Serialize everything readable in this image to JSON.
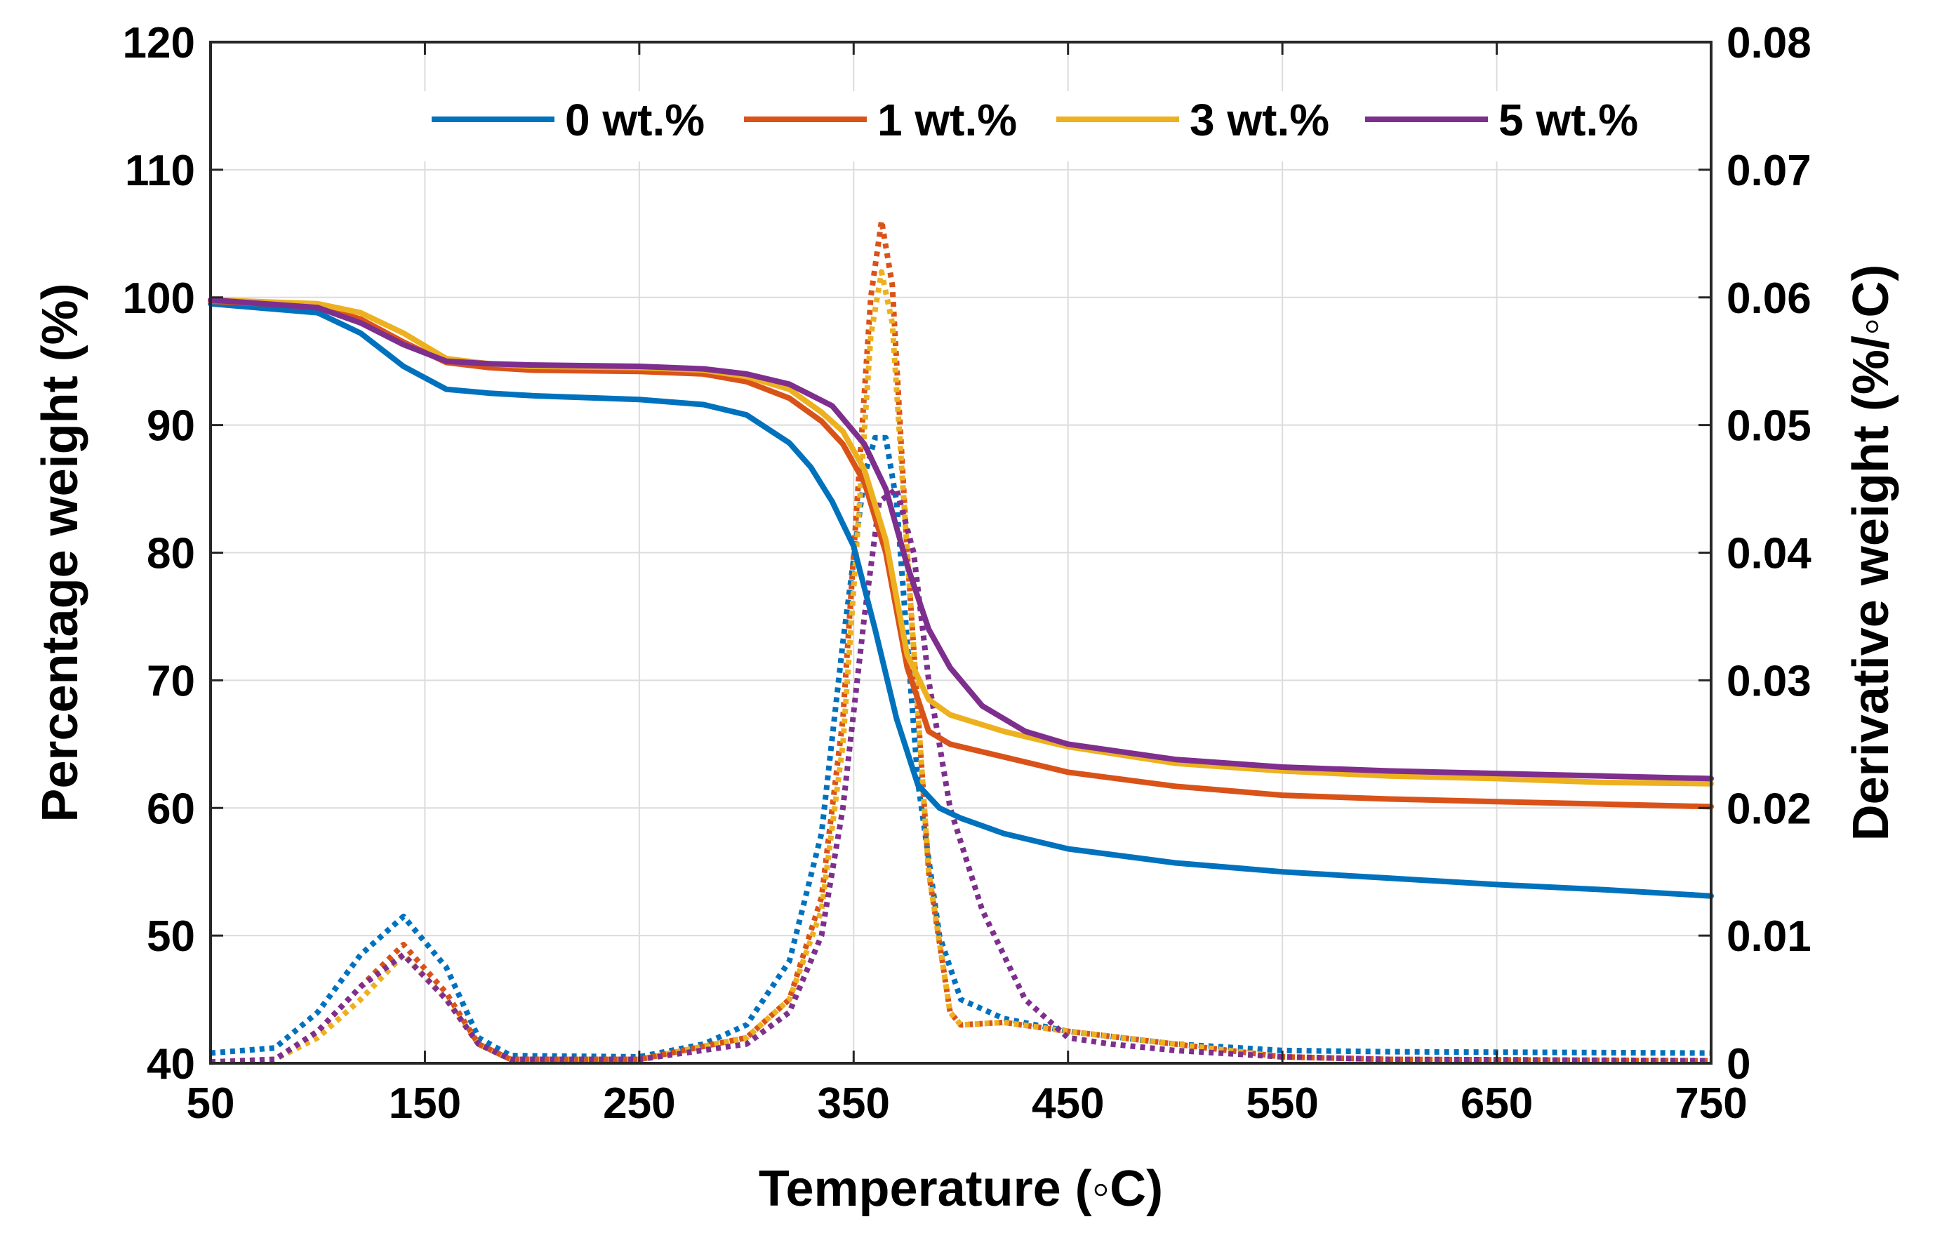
{
  "chart_data": {
    "type": "line",
    "title": "",
    "xlabel": "Temperature (◦C)",
    "ylabel_left": "Percentage weight (%)",
    "ylabel_right": "Derivative weight (%/◦C)",
    "xlim": [
      50,
      750
    ],
    "ylim_left": [
      40,
      120
    ],
    "ylim_right": [
      0,
      0.08
    ],
    "x_ticks": [
      50,
      150,
      250,
      350,
      450,
      550,
      650,
      750
    ],
    "y_ticks_left": [
      40,
      50,
      60,
      70,
      80,
      90,
      100,
      110,
      120
    ],
    "y_ticks_right": [
      "0",
      "0.01",
      "0.02",
      "0.03",
      "0.04",
      "0.05",
      "0.06",
      "0.07",
      "0.08"
    ],
    "grid": true,
    "legend_position": "top-right",
    "series": [
      {
        "name": "0 wt.%",
        "color": "#0072BD",
        "weight_percent": [
          [
            50,
            99.5
          ],
          [
            100,
            98.8
          ],
          [
            120,
            97.2
          ],
          [
            140,
            94.6
          ],
          [
            160,
            92.8
          ],
          [
            180,
            92.5
          ],
          [
            200,
            92.3
          ],
          [
            250,
            92.0
          ],
          [
            280,
            91.6
          ],
          [
            300,
            90.8
          ],
          [
            320,
            88.6
          ],
          [
            330,
            86.7
          ],
          [
            340,
            84.0
          ],
          [
            350,
            80.5
          ],
          [
            360,
            74.0
          ],
          [
            370,
            67.0
          ],
          [
            380,
            61.8
          ],
          [
            390,
            60.0
          ],
          [
            400,
            59.2
          ],
          [
            420,
            58.0
          ],
          [
            450,
            56.8
          ],
          [
            500,
            55.7
          ],
          [
            550,
            55.0
          ],
          [
            600,
            54.5
          ],
          [
            650,
            54.0
          ],
          [
            700,
            53.6
          ],
          [
            750,
            53.1
          ]
        ],
        "derivative": [
          [
            50,
            0.0008
          ],
          [
            80,
            0.0012
          ],
          [
            100,
            0.004
          ],
          [
            120,
            0.0085
          ],
          [
            140,
            0.0115
          ],
          [
            160,
            0.0075
          ],
          [
            175,
            0.002
          ],
          [
            190,
            0.0006
          ],
          [
            250,
            0.0005
          ],
          [
            280,
            0.0015
          ],
          [
            300,
            0.003
          ],
          [
            320,
            0.008
          ],
          [
            335,
            0.018
          ],
          [
            345,
            0.033
          ],
          [
            355,
            0.046
          ],
          [
            360,
            0.049
          ],
          [
            365,
            0.049
          ],
          [
            370,
            0.044
          ],
          [
            380,
            0.022
          ],
          [
            390,
            0.01
          ],
          [
            400,
            0.005
          ],
          [
            420,
            0.0035
          ],
          [
            450,
            0.0025
          ],
          [
            500,
            0.0015
          ],
          [
            550,
            0.001
          ],
          [
            600,
            0.0009
          ],
          [
            750,
            0.0008
          ]
        ]
      },
      {
        "name": "1 wt.%",
        "color": "#D95319",
        "weight_percent": [
          [
            50,
            99.7
          ],
          [
            100,
            99.3
          ],
          [
            120,
            98.3
          ],
          [
            140,
            96.5
          ],
          [
            160,
            94.9
          ],
          [
            180,
            94.5
          ],
          [
            200,
            94.3
          ],
          [
            250,
            94.2
          ],
          [
            280,
            94.0
          ],
          [
            300,
            93.4
          ],
          [
            320,
            92.1
          ],
          [
            335,
            90.3
          ],
          [
            345,
            88.5
          ],
          [
            355,
            85.5
          ],
          [
            365,
            80.0
          ],
          [
            375,
            71.0
          ],
          [
            385,
            66.0
          ],
          [
            395,
            65.0
          ],
          [
            420,
            64.0
          ],
          [
            450,
            62.8
          ],
          [
            500,
            61.7
          ],
          [
            550,
            61.0
          ],
          [
            600,
            60.7
          ],
          [
            650,
            60.5
          ],
          [
            700,
            60.3
          ],
          [
            750,
            60.1
          ]
        ],
        "derivative": [
          [
            50,
            0.0001
          ],
          [
            80,
            0.0003
          ],
          [
            100,
            0.0025
          ],
          [
            120,
            0.006
          ],
          [
            140,
            0.0093
          ],
          [
            160,
            0.0055
          ],
          [
            175,
            0.0015
          ],
          [
            190,
            0.0003
          ],
          [
            250,
            0.0003
          ],
          [
            300,
            0.002
          ],
          [
            320,
            0.005
          ],
          [
            335,
            0.013
          ],
          [
            345,
            0.027
          ],
          [
            352,
            0.045
          ],
          [
            358,
            0.06
          ],
          [
            363,
            0.066
          ],
          [
            368,
            0.061
          ],
          [
            375,
            0.04
          ],
          [
            385,
            0.015
          ],
          [
            395,
            0.004
          ],
          [
            400,
            0.003
          ],
          [
            420,
            0.0032
          ],
          [
            450,
            0.0025
          ],
          [
            500,
            0.0015
          ],
          [
            550,
            0.0005
          ],
          [
            600,
            0.0003
          ],
          [
            750,
            0.0002
          ]
        ]
      },
      {
        "name": "3 wt.%",
        "color": "#EDB120",
        "weight_percent": [
          [
            50,
            99.8
          ],
          [
            100,
            99.5
          ],
          [
            120,
            98.8
          ],
          [
            140,
            97.2
          ],
          [
            160,
            95.2
          ],
          [
            180,
            94.8
          ],
          [
            200,
            94.6
          ],
          [
            250,
            94.5
          ],
          [
            280,
            94.3
          ],
          [
            300,
            93.8
          ],
          [
            320,
            92.8
          ],
          [
            335,
            91.0
          ],
          [
            345,
            89.5
          ],
          [
            355,
            86.5
          ],
          [
            365,
            81.0
          ],
          [
            375,
            72.0
          ],
          [
            385,
            68.5
          ],
          [
            395,
            67.3
          ],
          [
            420,
            66.0
          ],
          [
            450,
            64.8
          ],
          [
            500,
            63.5
          ],
          [
            550,
            62.9
          ],
          [
            600,
            62.5
          ],
          [
            650,
            62.3
          ],
          [
            700,
            62.0
          ],
          [
            750,
            61.9
          ]
        ],
        "derivative": [
          [
            50,
            0.0001
          ],
          [
            80,
            0.0003
          ],
          [
            100,
            0.002
          ],
          [
            120,
            0.005
          ],
          [
            140,
            0.0085
          ],
          [
            160,
            0.005
          ],
          [
            175,
            0.0015
          ],
          [
            190,
            0.0003
          ],
          [
            250,
            0.0003
          ],
          [
            300,
            0.002
          ],
          [
            320,
            0.005
          ],
          [
            335,
            0.012
          ],
          [
            345,
            0.025
          ],
          [
            352,
            0.042
          ],
          [
            358,
            0.057
          ],
          [
            363,
            0.062
          ],
          [
            368,
            0.058
          ],
          [
            375,
            0.04
          ],
          [
            385,
            0.015
          ],
          [
            395,
            0.004
          ],
          [
            400,
            0.003
          ],
          [
            420,
            0.0032
          ],
          [
            450,
            0.0025
          ],
          [
            500,
            0.0015
          ],
          [
            550,
            0.0005
          ],
          [
            600,
            0.0003
          ],
          [
            750,
            0.0002
          ]
        ]
      },
      {
        "name": "5 wt.%",
        "color": "#7E2F8E",
        "weight_percent": [
          [
            50,
            99.8
          ],
          [
            100,
            99.2
          ],
          [
            120,
            98.0
          ],
          [
            140,
            96.3
          ],
          [
            160,
            95.0
          ],
          [
            180,
            94.8
          ],
          [
            200,
            94.7
          ],
          [
            250,
            94.6
          ],
          [
            280,
            94.4
          ],
          [
            300,
            94.0
          ],
          [
            320,
            93.2
          ],
          [
            340,
            91.5
          ],
          [
            355,
            88.5
          ],
          [
            365,
            85.0
          ],
          [
            375,
            79.0
          ],
          [
            385,
            74.0
          ],
          [
            395,
            71.0
          ],
          [
            410,
            68.0
          ],
          [
            430,
            66.0
          ],
          [
            450,
            65.0
          ],
          [
            500,
            63.8
          ],
          [
            550,
            63.2
          ],
          [
            600,
            62.9
          ],
          [
            650,
            62.7
          ],
          [
            700,
            62.5
          ],
          [
            750,
            62.3
          ]
        ],
        "derivative": [
          [
            50,
            0.0001
          ],
          [
            80,
            0.0003
          ],
          [
            100,
            0.0025
          ],
          [
            120,
            0.006
          ],
          [
            140,
            0.0085
          ],
          [
            160,
            0.005
          ],
          [
            175,
            0.0015
          ],
          [
            190,
            0.0003
          ],
          [
            250,
            0.0003
          ],
          [
            300,
            0.0015
          ],
          [
            320,
            0.004
          ],
          [
            335,
            0.01
          ],
          [
            345,
            0.02
          ],
          [
            355,
            0.035
          ],
          [
            362,
            0.044
          ],
          [
            370,
            0.045
          ],
          [
            378,
            0.04
          ],
          [
            385,
            0.03
          ],
          [
            395,
            0.02
          ],
          [
            410,
            0.012
          ],
          [
            430,
            0.005
          ],
          [
            450,
            0.002
          ],
          [
            470,
            0.0015
          ],
          [
            500,
            0.001
          ],
          [
            550,
            0.0005
          ],
          [
            600,
            0.0003
          ],
          [
            750,
            0.0002
          ]
        ]
      }
    ]
  }
}
